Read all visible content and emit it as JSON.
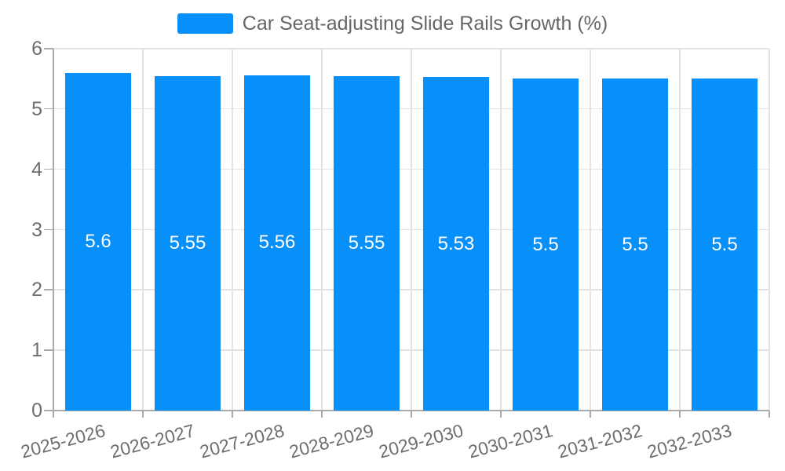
{
  "chart_data": {
    "type": "bar",
    "title": "Car Seat-adjusting Slide Rails Growth (%)",
    "legend": {
      "label": "Car Seat-adjusting Slide Rails Growth (%)",
      "position": "top-center"
    },
    "categories": [
      "2025-2026",
      "2026-2027",
      "2027-2028",
      "2028-2029",
      "2029-2030",
      "2030-2031",
      "2031-2032",
      "2032-2033"
    ],
    "values": [
      5.6,
      5.55,
      5.56,
      5.55,
      5.53,
      5.5,
      5.5,
      5.5
    ],
    "bar_labels": [
      "5.6",
      "5.55",
      "5.56",
      "5.55",
      "5.53",
      "5.5",
      "5.5",
      "5.5"
    ],
    "xlabel": "",
    "ylabel": "",
    "ylim": [
      0,
      6
    ],
    "yticks": [
      0,
      1,
      2,
      3,
      4,
      5,
      6
    ],
    "grid": true,
    "x_label_rotation_deg": -15,
    "colors": {
      "bar": "#0890FA",
      "grid": "#E3E3E3",
      "axis": "#AAAAAA",
      "tick": "#AAAAAA",
      "axis_label": "#6E6E6E",
      "bar_label": "#FFFFFF",
      "legend_text": "#666666",
      "background": "#FFFFFF"
    }
  }
}
